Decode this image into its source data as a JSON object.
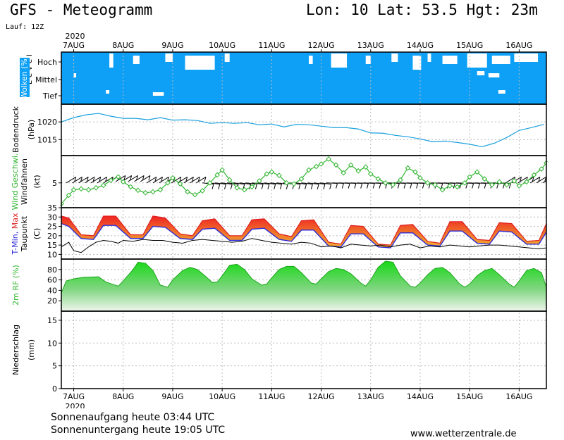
{
  "header": {
    "title": "GFS - Meteogramm",
    "location": "Lon: 10 Lat: 53.5 Hgt: 23m",
    "run": "Lauf: 12Z"
  },
  "footer": {
    "sunrise": "Sonnenaufgang heute 03:44 UTC",
    "sunset": "Sonnenuntergang heute 19:05 UTC",
    "site": "www.wetterzentrale.de"
  },
  "colors": {
    "cloud_bg": "#0ea0f6",
    "pressure_line": "#1aa0dc",
    "wind_line": "#2fb52f",
    "tmax_fill": "#ee3030",
    "tmin_line": "#2a2ad8",
    "rh_fill": "#2fdc2f",
    "gridline": "#bbbbbb"
  },
  "chart_data": [
    {
      "id": "time-axis",
      "type": "axis",
      "year": "2020",
      "day_labels": [
        "7AUG",
        "8AUG",
        "9AUG",
        "10AUG",
        "11AUG",
        "12AUG",
        "13AUG",
        "14AUG",
        "15AUG",
        "16AUG"
      ]
    },
    {
      "id": "wolken",
      "type": "heatmap",
      "ylabel_parts": [
        "Wolken",
        "(%)"
      ],
      "level_label": "Level",
      "levels": [
        "Hoch",
        "Mittel",
        "Tief"
      ],
      "fill_color": "#0ea0f6",
      "clear_spells": [
        {
          "level": "Hoch",
          "day_from": 7.72,
          "day_to": 7.8
        },
        {
          "level": "Hoch",
          "day_from": 8.2,
          "day_to": 8.33
        },
        {
          "level": "Hoch",
          "day_from": 8.85,
          "day_to": 9.0
        },
        {
          "level": "Hoch",
          "day_from": 9.25,
          "day_to": 9.85
        },
        {
          "level": "Hoch",
          "day_from": 10.05,
          "day_to": 10.15
        },
        {
          "level": "Hoch",
          "day_from": 11.75,
          "day_to": 11.83
        },
        {
          "level": "Hoch",
          "day_from": 12.2,
          "day_to": 12.52
        },
        {
          "level": "Hoch",
          "day_from": 12.9,
          "day_to": 13.0
        },
        {
          "level": "Hoch",
          "day_from": 13.42,
          "day_to": 13.55
        },
        {
          "level": "Hoch",
          "day_from": 13.85,
          "day_to": 14.02
        },
        {
          "level": "Hoch",
          "day_from": 14.15,
          "day_to": 14.22
        },
        {
          "level": "Hoch",
          "day_from": 14.45,
          "day_to": 14.75
        },
        {
          "level": "Hoch",
          "day_from": 14.95,
          "day_to": 15.35
        },
        {
          "level": "Hoch",
          "day_from": 15.45,
          "day_to": 15.82
        },
        {
          "level": "Hoch",
          "day_from": 15.9,
          "day_to": 16.38
        },
        {
          "level": "Mittel",
          "day_from": 7.0,
          "day_to": 7.05
        },
        {
          "level": "Mittel",
          "day_from": 15.15,
          "day_to": 15.3
        },
        {
          "level": "Mittel",
          "day_from": 15.38,
          "day_to": 15.6
        },
        {
          "level": "Tief",
          "day_from": 7.65,
          "day_to": 7.72
        },
        {
          "level": "Tief",
          "day_from": 8.6,
          "day_to": 8.82
        },
        {
          "level": "Tief",
          "day_from": 15.58,
          "day_to": 15.72
        }
      ]
    },
    {
      "id": "bodendruck",
      "type": "line",
      "ylabel_parts": [
        "Bodendruck",
        "(hPa)"
      ],
      "yticks": [
        1015,
        1020
      ],
      "ylim": [
        1010.5,
        1025
      ],
      "series": [
        {
          "x": [
            6.75,
            7.0,
            7.25,
            7.5,
            7.75,
            8.0,
            8.25,
            8.5,
            8.75,
            9.0,
            9.25,
            9.5,
            9.75,
            10.0,
            10.25,
            10.5,
            10.75,
            11.0,
            11.25,
            11.5,
            11.75,
            12.0,
            12.25,
            12.5,
            12.75,
            13.0,
            13.25,
            13.5,
            13.75,
            14.0,
            14.25,
            14.5,
            14.75,
            15.0,
            15.25,
            15.5,
            15.75,
            16.0,
            16.25,
            16.5
          ],
          "values": [
            1020.0,
            1021.2,
            1022.0,
            1022.4,
            1021.6,
            1021.0,
            1021.0,
            1020.6,
            1021.2,
            1020.5,
            1020.6,
            1020.4,
            1019.6,
            1019.8,
            1019.6,
            1019.8,
            1019.2,
            1019.4,
            1018.6,
            1019.3,
            1019.2,
            1018.8,
            1018.4,
            1018.4,
            1018.0,
            1016.9,
            1016.8,
            1016.2,
            1015.8,
            1015.2,
            1014.4,
            1014.6,
            1014.2,
            1013.7,
            1013.0,
            1014.0,
            1015.6,
            1017.6,
            1018.4,
            1019.3
          ]
        }
      ]
    },
    {
      "id": "wind",
      "type": "line",
      "ylabel_parts": [
        "Wind Geschwi.",
        "Windfahnen",
        "(kt)"
      ],
      "yticks": [
        5
      ],
      "ylim": [
        0,
        10.5
      ],
      "series": [
        {
          "x": [
            6.75,
            6.9,
            7.0,
            7.15,
            7.3,
            7.45,
            7.6,
            7.75,
            7.9,
            8.0,
            8.15,
            8.3,
            8.45,
            8.6,
            8.75,
            8.9,
            9.0,
            9.15,
            9.3,
            9.45,
            9.6,
            9.75,
            9.9,
            10.0,
            10.15,
            10.3,
            10.45,
            10.6,
            10.75,
            10.9,
            11.0,
            11.15,
            11.3,
            11.45,
            11.6,
            11.75,
            11.9,
            12.0,
            12.15,
            12.3,
            12.45,
            12.6,
            12.75,
            12.9,
            13.0,
            13.15,
            13.3,
            13.45,
            13.6,
            13.75,
            13.9,
            14.0,
            14.15,
            14.3,
            14.45,
            14.6,
            14.75,
            14.9,
            15.0,
            15.15,
            15.3,
            15.45,
            15.6,
            15.75,
            15.9,
            16.0,
            16.15,
            16.3,
            16.45,
            16.55
          ],
          "values": [
            0.8,
            2.5,
            3.6,
            3.8,
            3.6,
            4.0,
            4.5,
            5.5,
            6.2,
            5.2,
            4.2,
            3.5,
            3.0,
            3.2,
            3.6,
            5.0,
            6.0,
            4.8,
            3.2,
            2.6,
            3.4,
            5.0,
            6.6,
            7.6,
            5.6,
            4.0,
            3.6,
            4.2,
            5.4,
            6.8,
            7.2,
            6.5,
            5.0,
            4.8,
            5.8,
            7.6,
            8.3,
            8.8,
            9.8,
            8.6,
            7.0,
            8.6,
            7.4,
            8.2,
            6.8,
            5.8,
            5.0,
            4.6,
            5.6,
            8.0,
            7.2,
            6.0,
            5.0,
            4.6,
            3.6,
            4.4,
            4.2,
            5.0,
            6.2,
            7.2,
            5.8,
            4.6,
            5.2,
            4.6,
            5.4,
            4.4,
            5.2,
            6.6,
            7.8,
            9.0
          ]
        }
      ]
    },
    {
      "id": "temperatur",
      "type": "area",
      "ylabel_parts": [
        "T-Min,",
        "Max",
        "Taupunkt",
        "(C)"
      ],
      "yticks": [
        10,
        15,
        20,
        25,
        30,
        35
      ],
      "ylim": [
        7.5,
        35
      ],
      "series": [
        {
          "name": "T-Max",
          "x": [
            6.75,
            6.9,
            7.15,
            7.4,
            7.6,
            7.85,
            8.15,
            8.4,
            8.6,
            8.85,
            9.15,
            9.4,
            9.6,
            9.85,
            10.15,
            10.4,
            10.6,
            10.85,
            11.15,
            11.4,
            11.6,
            11.85,
            12.15,
            12.4,
            12.6,
            12.85,
            13.15,
            13.4,
            13.6,
            13.85,
            14.15,
            14.4,
            14.6,
            14.85,
            15.15,
            15.4,
            15.6,
            15.85,
            16.15,
            16.4,
            16.55
          ],
          "values": [
            30.5,
            29.5,
            20.5,
            20.0,
            30.5,
            30.5,
            20.5,
            20.5,
            30.5,
            29.5,
            21.0,
            20.0,
            28.0,
            29.0,
            20.0,
            20.0,
            28.5,
            29.0,
            21.0,
            19.5,
            28.0,
            28.5,
            16.5,
            15.5,
            25.5,
            25.0,
            15.5,
            15.0,
            25.5,
            26.0,
            17.0,
            16.0,
            27.5,
            27.5,
            18.0,
            17.5,
            27.0,
            26.5,
            17.0,
            17.5,
            26.5
          ]
        },
        {
          "name": "T-Min",
          "x": [
            6.75,
            6.9,
            7.15,
            7.4,
            7.6,
            7.85,
            8.15,
            8.4,
            8.6,
            8.85,
            9.15,
            9.4,
            9.6,
            9.85,
            10.15,
            10.4,
            10.6,
            10.85,
            11.15,
            11.4,
            11.6,
            11.85,
            12.15,
            12.4,
            12.6,
            12.85,
            13.15,
            13.4,
            13.6,
            13.85,
            14.15,
            14.4,
            14.6,
            14.85,
            15.15,
            15.4,
            15.6,
            15.85,
            16.15,
            16.4,
            16.55
          ],
          "values": [
            26.5,
            25.0,
            18.5,
            18.0,
            25.5,
            25.5,
            18.5,
            18.5,
            25.0,
            24.5,
            18.5,
            18.0,
            23.5,
            24.0,
            17.5,
            17.5,
            23.5,
            24.0,
            18.0,
            17.0,
            23.0,
            23.0,
            14.5,
            14.0,
            21.0,
            21.0,
            14.0,
            13.5,
            21.5,
            21.5,
            15.0,
            14.5,
            22.5,
            22.5,
            16.0,
            15.5,
            22.5,
            22.0,
            15.5,
            15.5,
            22.0
          ]
        },
        {
          "name": "Taupunkt",
          "x": [
            6.75,
            6.9,
            7.0,
            7.15,
            7.3,
            7.45,
            7.6,
            7.75,
            7.9,
            8.0,
            8.2,
            8.4,
            8.6,
            8.8,
            9.0,
            9.2,
            9.4,
            9.6,
            9.8,
            10.0,
            10.2,
            10.4,
            10.6,
            10.8,
            11.0,
            11.2,
            11.4,
            11.6,
            11.8,
            12.0,
            12.2,
            12.4,
            12.6,
            12.8,
            13.0,
            13.2,
            13.4,
            13.6,
            13.8,
            14.0,
            14.2,
            14.4,
            14.6,
            14.8,
            15.0,
            15.2,
            15.4,
            15.6,
            15.8,
            16.0,
            16.2,
            16.4,
            16.55
          ],
          "values": [
            14.0,
            16.5,
            12.0,
            11.0,
            14.0,
            16.5,
            17.5,
            17.0,
            16.0,
            17.5,
            17.0,
            18.0,
            17.5,
            17.5,
            16.5,
            16.0,
            17.5,
            18.0,
            17.5,
            17.0,
            16.5,
            17.0,
            18.5,
            17.5,
            16.5,
            16.0,
            15.5,
            16.5,
            16.0,
            14.0,
            14.5,
            13.5,
            15.5,
            15.0,
            14.5,
            15.0,
            14.0,
            15.0,
            15.5,
            13.5,
            14.5,
            14.0,
            15.0,
            14.5,
            14.0,
            14.5,
            15.0,
            15.0,
            14.5,
            14.0,
            13.5,
            13.0,
            13.5
          ]
        }
      ]
    },
    {
      "id": "rf",
      "type": "area",
      "ylabel_parts": [
        "2m RF",
        "(%)"
      ],
      "yticks": [
        20,
        40,
        60,
        80
      ],
      "ylim": [
        0,
        100
      ],
      "series": [
        {
          "name": "2m RF",
          "x": [
            6.75,
            6.85,
            7.0,
            7.2,
            7.5,
            7.65,
            7.9,
            8.0,
            8.2,
            8.3,
            8.45,
            8.6,
            8.75,
            8.9,
            9.0,
            9.2,
            9.35,
            9.5,
            9.65,
            9.8,
            9.9,
            10.0,
            10.15,
            10.3,
            10.45,
            10.6,
            10.8,
            10.9,
            11.0,
            11.15,
            11.3,
            11.45,
            11.6,
            11.8,
            11.9,
            12.0,
            12.15,
            12.3,
            12.45,
            12.6,
            12.8,
            12.9,
            13.0,
            13.15,
            13.3,
            13.45,
            13.6,
            13.8,
            13.9,
            14.0,
            14.15,
            14.3,
            14.45,
            14.6,
            14.8,
            14.9,
            15.0,
            15.15,
            15.3,
            15.45,
            15.6,
            15.8,
            15.9,
            16.0,
            16.15,
            16.3,
            16.45,
            16.55
          ],
          "values": [
            35,
            58,
            62,
            65,
            66,
            56,
            48,
            58,
            80,
            94,
            92,
            78,
            50,
            46,
            60,
            78,
            84,
            80,
            68,
            55,
            56,
            68,
            88,
            90,
            80,
            62,
            50,
            52,
            64,
            80,
            86,
            86,
            74,
            54,
            52,
            62,
            76,
            82,
            80,
            72,
            54,
            48,
            60,
            84,
            96,
            94,
            68,
            48,
            46,
            54,
            70,
            82,
            84,
            74,
            52,
            46,
            52,
            68,
            78,
            82,
            70,
            52,
            46,
            58,
            78,
            82,
            74,
            46
          ]
        }
      ]
    },
    {
      "id": "niederschlag",
      "type": "bar",
      "ylabel_parts": [
        "Niederschlag",
        "(mm)"
      ],
      "yticks": [
        0,
        5,
        10,
        15
      ],
      "ylim": [
        0,
        17
      ],
      "series": [
        {
          "name": "Niederschlag",
          "x": [],
          "values": []
        }
      ]
    }
  ]
}
